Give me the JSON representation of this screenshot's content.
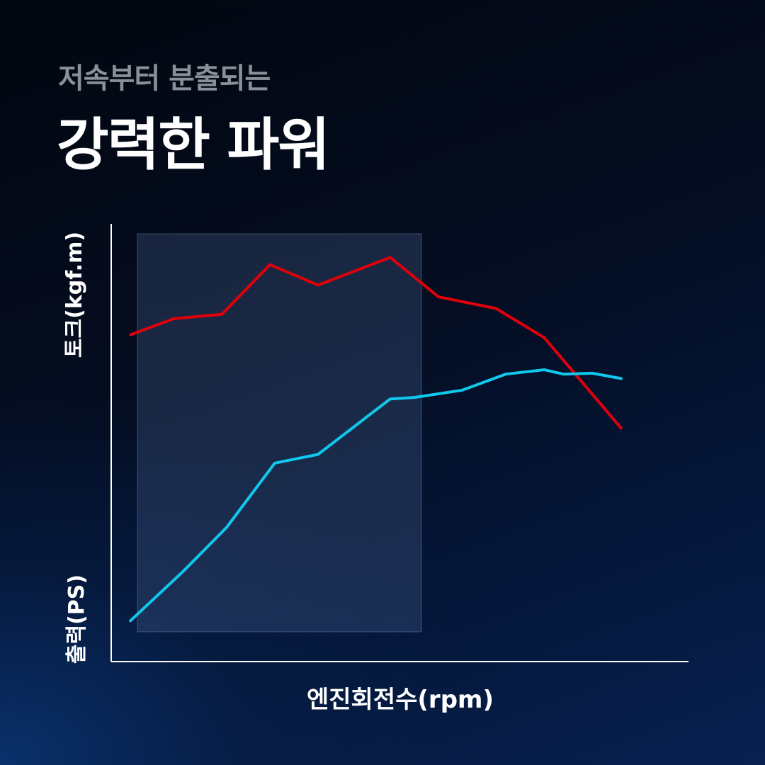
{
  "header": {
    "subtitle": "저속부터 분출되는",
    "title": "강력한 파워"
  },
  "chart_data": {
    "type": "line",
    "ylabel_top": "토크(kgf.m)",
    "ylabel_bottom": "출력(PS)",
    "xlabel": "엔진회전수(rpm)",
    "highlight_band": {
      "x_start": 0,
      "x_end": 6.45
    },
    "x": [
      0.4,
      1.3,
      2.3,
      3.3,
      4.3,
      5.3,
      5.9,
      6.8,
      7.7,
      8.6,
      9.0,
      9.7,
      10.6
    ],
    "series": [
      {
        "key": "torque",
        "color": "#e0000b",
        "points": [
          [
            0.4,
            7.2
          ],
          [
            1.3,
            7.75
          ],
          [
            2.3,
            7.9
          ],
          [
            3.3,
            9.6
          ],
          [
            4.3,
            8.9
          ],
          [
            5.8,
            9.85
          ],
          [
            6.8,
            8.5
          ],
          [
            8.0,
            8.1
          ],
          [
            9.0,
            7.1
          ],
          [
            10.6,
            4.0
          ]
        ]
      },
      {
        "key": "power",
        "color": "#10c8ec",
        "points": [
          [
            0.4,
            -2.6
          ],
          [
            1.5,
            -0.9
          ],
          [
            2.4,
            0.6
          ],
          [
            3.4,
            2.8
          ],
          [
            4.3,
            3.1
          ],
          [
            5.8,
            5.0
          ],
          [
            6.3,
            5.05
          ],
          [
            7.3,
            5.3
          ],
          [
            8.2,
            5.85
          ],
          [
            9.0,
            6.0
          ],
          [
            9.4,
            5.85
          ],
          [
            10.0,
            5.88
          ],
          [
            10.6,
            5.7
          ]
        ]
      }
    ],
    "x_range": [
      0,
      12
    ],
    "y_range": [
      -4,
      11
    ],
    "axes_color": "#ffffff",
    "grid": false,
    "legend": "none"
  }
}
